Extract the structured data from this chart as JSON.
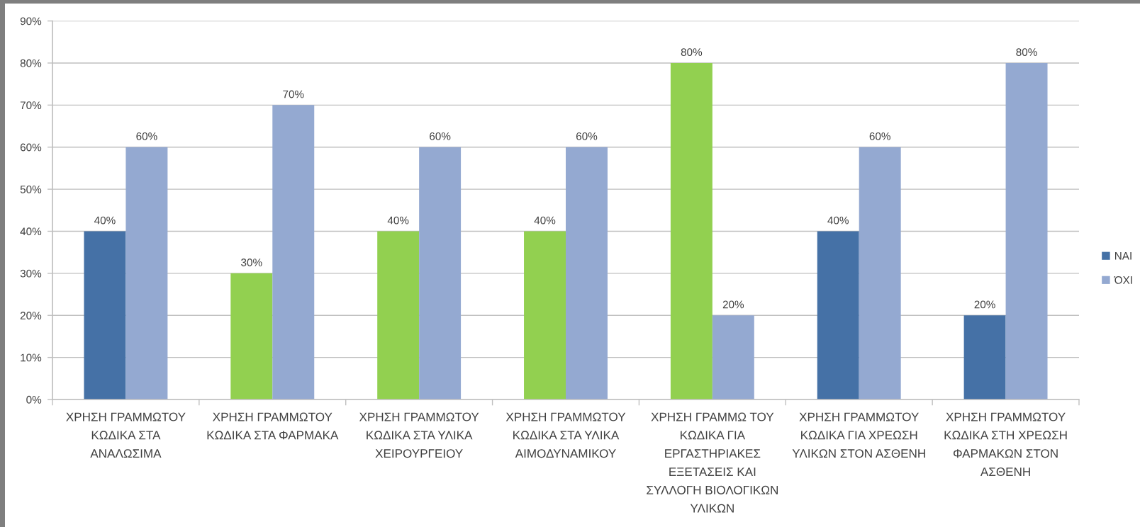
{
  "chart_data": {
    "type": "bar",
    "categories": [
      "ΧΡΗΣΗ ΓΡΑΜΜΩΤΟΥ\nΚΩΔΙΚΑ ΣΤΑ\nΑΝΑΛΩΣΙΜΑ",
      "ΧΡΗΣΗ ΓΡΑΜΜΩΤΟΥ\nΚΩΔΙΚΑ ΣΤΑ ΦΑΡΜΑΚΑ",
      "ΧΡΗΣΗ ΓΡΑΜΜΩΤΟΥ\nΚΩΔΙΚΑ ΣΤΑ ΥΛΙΚΑ\nΧΕΙΡΟΥΡΓΕΙΟΥ",
      "ΧΡΗΣΗ ΓΡΑΜΜΩΤΟΥ\nΚΩΔΙΚΑ ΣΤΑ ΥΛΙΚΑ\nΑΙΜΟΔΥΝΑΜΙΚΟΥ",
      "ΧΡΗΣΗ ΓΡΑΜΜΩ ΤΟΥ\nΚΩΔΙΚΑ ΓΙΑ\nΕΡΓΑΣΤΗΡΙΑΚΕΣ\nΕΞΕΤΑΣΕΙΣ ΚΑΙ\nΣΥΛΛΟΓΗ ΒΙΟΛΟΓΙΚΩΝ\nΥΛΙΚΩΝ",
      "ΧΡΗΣΗ ΓΡΑΜΜΩΤΟΥ\nΚΩΔΙΚΑ ΓΙΑ ΧΡΕΩΣΗ\nΥΛΙΚΩΝ ΣΤΟΝ ΑΣΘΕΝΗ",
      "ΧΡΗΣΗ ΓΡΑΜΜΩΤΟΥ\nΚΩΔΙΚΑ ΣΤΗ ΧΡΕΩΣΗ\nΦΑΡΜΑΚΩΝ ΣΤΟΝ\nΑΣΘΕΝΗ"
    ],
    "series": [
      {
        "name": "ΝΑΙ",
        "color": "#4571a6",
        "colors": [
          "#4571a6",
          "#92d050",
          "#92d050",
          "#92d050",
          "#92d050",
          "#4571a6",
          "#4571a6"
        ],
        "values": [
          40,
          30,
          40,
          40,
          80,
          40,
          20
        ],
        "value_labels": [
          "40%",
          "30%",
          "40%",
          "40%",
          "80%",
          "40%",
          "20%"
        ]
      },
      {
        "name": "ΌΧΙ",
        "color": "#94a9d1",
        "values": [
          60,
          70,
          60,
          60,
          20,
          60,
          80
        ],
        "value_labels": [
          "60%",
          "70%",
          "60%",
          "60%",
          "20%",
          "60%",
          "80%"
        ]
      }
    ],
    "ylim": [
      0,
      90
    ],
    "yticks": [
      {
        "value": 0,
        "label": "0%"
      },
      {
        "value": 10,
        "label": "10%"
      },
      {
        "value": 20,
        "label": "20%"
      },
      {
        "value": 30,
        "label": "30%"
      },
      {
        "value": 40,
        "label": "40%"
      },
      {
        "value": 50,
        "label": "50%"
      },
      {
        "value": 60,
        "label": "60%"
      },
      {
        "value": 70,
        "label": "70%"
      },
      {
        "value": 80,
        "label": "80%"
      },
      {
        "value": 90,
        "label": "90%"
      }
    ],
    "grid": "y",
    "legend": "right"
  }
}
